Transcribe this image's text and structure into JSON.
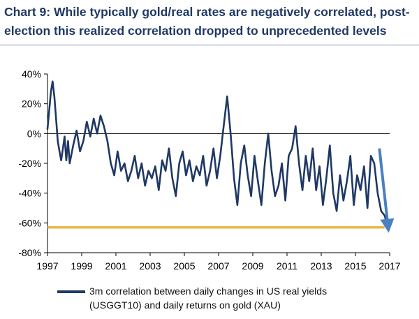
{
  "title": "Chart 9: While typically gold/real rates are negatively correlated, post-election this realized correlation dropped to unprecedented levels",
  "legend": {
    "line1": "3m correlation between daily changes in US real yields",
    "line2": "(USGGT10) and daily returns on gold (XAU)"
  },
  "colors": {
    "series": "#1f3864",
    "threshold": "#e8b84b",
    "arrow": "#4a7fc1",
    "title": "#1f3864"
  },
  "chart_data": {
    "type": "line",
    "title": "Chart 9: While typically gold/real rates are negatively correlated, post-election this realized correlation dropped to unprecedented levels",
    "xlabel": "",
    "ylabel": "",
    "xlim": [
      1997,
      2017
    ],
    "ylim": [
      -80,
      40
    ],
    "x_ticks": [
      1997,
      1999,
      2001,
      2003,
      2005,
      2007,
      2009,
      2011,
      2013,
      2015,
      2017
    ],
    "x_tick_labels": [
      "1997",
      "1999",
      "2001",
      "2003",
      "2005",
      "2007",
      "2009",
      "2011",
      "2013",
      "2015",
      "2017"
    ],
    "y_ticks": [
      40,
      20,
      0,
      -20,
      -40,
      -60,
      -80
    ],
    "y_tick_labels": [
      "40%",
      "20%",
      "0%",
      "-20%",
      "-40%",
      "-60%",
      "-80%"
    ],
    "grid": false,
    "legend_position": "bottom",
    "series": [
      {
        "name": "3m correlation between daily changes in US real yields (USGGT10) and daily returns on gold (XAU)",
        "unit": "%",
        "x": [
          1997.0,
          1997.1,
          1997.2,
          1997.3,
          1997.4,
          1997.5,
          1997.6,
          1997.7,
          1997.8,
          1997.9,
          1998.0,
          1998.1,
          1998.2,
          1998.3,
          1998.5,
          1998.7,
          1998.9,
          1999.1,
          1999.3,
          1999.5,
          1999.7,
          1999.9,
          2000.1,
          2000.3,
          2000.5,
          2000.7,
          2000.9,
          2001.1,
          2001.3,
          2001.5,
          2001.7,
          2001.9,
          2002.1,
          2002.3,
          2002.5,
          2002.7,
          2002.9,
          2003.1,
          2003.3,
          2003.5,
          2003.7,
          2003.9,
          2004.1,
          2004.3,
          2004.5,
          2004.7,
          2004.9,
          2005.1,
          2005.3,
          2005.5,
          2005.7,
          2005.9,
          2006.1,
          2006.3,
          2006.5,
          2006.7,
          2006.9,
          2007.1,
          2007.3,
          2007.5,
          2007.7,
          2007.9,
          2008.1,
          2008.3,
          2008.5,
          2008.7,
          2008.9,
          2009.1,
          2009.3,
          2009.5,
          2009.7,
          2009.9,
          2010.1,
          2010.3,
          2010.5,
          2010.7,
          2010.9,
          2011.1,
          2011.3,
          2011.5,
          2011.7,
          2011.9,
          2012.1,
          2012.3,
          2012.5,
          2012.7,
          2012.9,
          2013.1,
          2013.3,
          2013.5,
          2013.7,
          2013.9,
          2014.1,
          2014.3,
          2014.5,
          2014.7,
          2014.9,
          2015.1,
          2015.3,
          2015.5,
          2015.7,
          2015.9,
          2016.1,
          2016.3,
          2016.5,
          2016.7,
          2016.9
        ],
        "y": [
          3,
          15,
          28,
          35,
          25,
          10,
          -5,
          -12,
          -18,
          -10,
          -2,
          -18,
          -5,
          -20,
          -8,
          2,
          -12,
          -5,
          8,
          -2,
          10,
          0,
          12,
          5,
          -5,
          -20,
          -28,
          -12,
          -25,
          -20,
          -32,
          -25,
          -15,
          -30,
          -20,
          -35,
          -25,
          -30,
          -22,
          -38,
          -18,
          -25,
          -10,
          -30,
          -42,
          -20,
          -12,
          -28,
          -18,
          -32,
          -22,
          -28,
          -15,
          -35,
          -25,
          -10,
          -30,
          -15,
          5,
          25,
          0,
          -30,
          -48,
          -20,
          -8,
          -28,
          -42,
          -15,
          -32,
          -48,
          -20,
          0,
          -25,
          -42,
          -35,
          -20,
          -45,
          -15,
          -10,
          5,
          -20,
          -38,
          -15,
          -32,
          -10,
          -38,
          -22,
          -48,
          -30,
          -8,
          -40,
          -52,
          -28,
          -45,
          -32,
          -15,
          -48,
          -28,
          -38,
          -22,
          -50,
          -15,
          -20,
          -40,
          -52,
          -55,
          -63
        ]
      }
    ],
    "annotations": [
      {
        "type": "horizontal_line",
        "y": -63,
        "x_start": 1997,
        "x_end": 2016.7,
        "color": "#e8b84b"
      },
      {
        "type": "arrow",
        "from": [
          2016.4,
          -10
        ],
        "to": [
          2016.9,
          -62
        ],
        "color": "#4a7fc1"
      }
    ]
  }
}
